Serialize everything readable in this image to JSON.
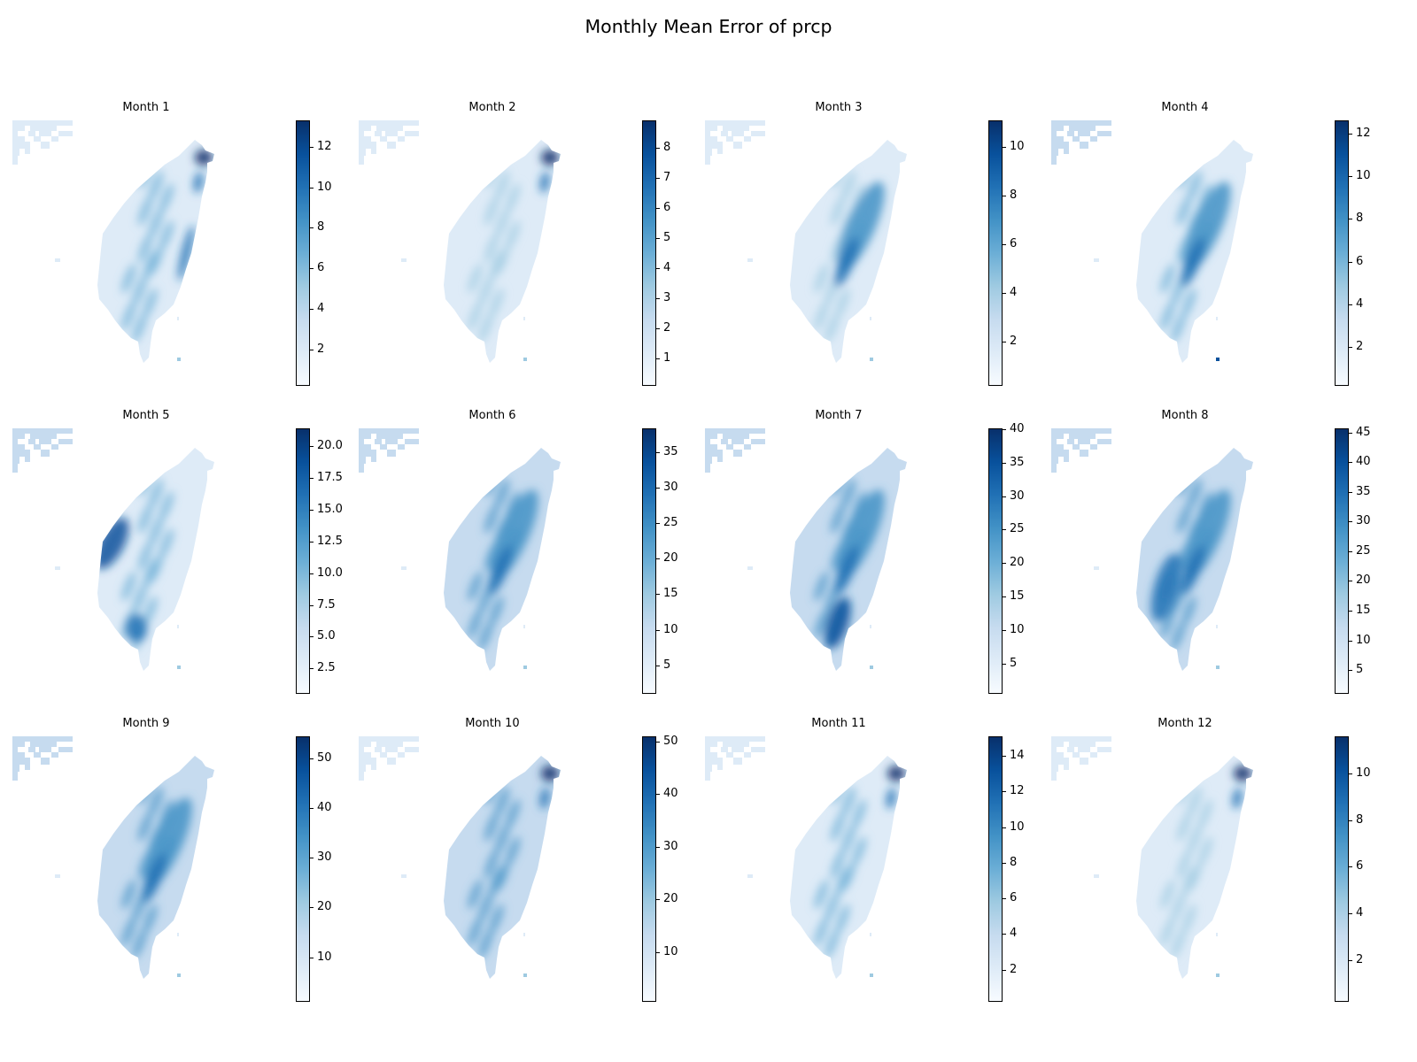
{
  "title": "Monthly Mean Error of prcp",
  "chart_data": {
    "type": "heatmap",
    "title": "Monthly Mean Error of prcp",
    "colormap": "Blues",
    "colors": [
      "#f7fbff",
      "#deebf7",
      "#c6dbef",
      "#9ecae1",
      "#6baed6",
      "#4292c6",
      "#2171b5",
      "#08519c",
      "#08306b"
    ],
    "grid": false,
    "panels": [
      {
        "title": "Month 1",
        "cbar_range": [
          0.2,
          13.3
        ],
        "ticks": [
          {
            "v": 2,
            "l": "2"
          },
          {
            "v": 4,
            "l": "4"
          },
          {
            "v": 6,
            "l": "6"
          },
          {
            "v": 8,
            "l": "8"
          },
          {
            "v": 10,
            "l": "10"
          },
          {
            "v": 12,
            "l": "12"
          }
        ],
        "peak": 13.0,
        "hotspots": [
          "northeast-coast",
          "east-coast"
        ]
      },
      {
        "title": "Month 2",
        "cbar_range": [
          0.1,
          8.9
        ],
        "ticks": [
          {
            "v": 1,
            "l": "1"
          },
          {
            "v": 2,
            "l": "2"
          },
          {
            "v": 3,
            "l": "3"
          },
          {
            "v": 4,
            "l": "4"
          },
          {
            "v": 5,
            "l": "5"
          },
          {
            "v": 6,
            "l": "6"
          },
          {
            "v": 7,
            "l": "7"
          },
          {
            "v": 8,
            "l": "8"
          }
        ],
        "peak": 8.8,
        "hotspots": [
          "northeast-coast"
        ]
      },
      {
        "title": "Month 3",
        "cbar_range": [
          0.2,
          11.1
        ],
        "ticks": [
          {
            "v": 2,
            "l": "2"
          },
          {
            "v": 4,
            "l": "4"
          },
          {
            "v": 6,
            "l": "6"
          },
          {
            "v": 8,
            "l": "8"
          },
          {
            "v": 10,
            "l": "10"
          }
        ],
        "peak": 11.0,
        "hotspots": [
          "central-mountains"
        ]
      },
      {
        "title": "Month 4",
        "cbar_range": [
          0.2,
          12.6
        ],
        "ticks": [
          {
            "v": 2,
            "l": "2"
          },
          {
            "v": 4,
            "l": "4"
          },
          {
            "v": 6,
            "l": "6"
          },
          {
            "v": 8,
            "l": "8"
          },
          {
            "v": 10,
            "l": "10"
          },
          {
            "v": 12,
            "l": "12"
          }
        ],
        "peak": 12.5,
        "hotspots": [
          "central-mountains",
          "southeast-islet"
        ]
      },
      {
        "title": "Month 5",
        "cbar_range": [
          0.5,
          21.4
        ],
        "ticks": [
          {
            "v": 2.5,
            "l": "2.5"
          },
          {
            "v": 5,
            "l": "5.0"
          },
          {
            "v": 7.5,
            "l": "7.5"
          },
          {
            "v": 10,
            "l": "10.0"
          },
          {
            "v": 12.5,
            "l": "12.5"
          },
          {
            "v": 15,
            "l": "15.0"
          },
          {
            "v": 17.5,
            "l": "17.5"
          },
          {
            "v": 20,
            "l": "20.0"
          }
        ],
        "peak": 21.0,
        "hotspots": [
          "west-coast",
          "south-west"
        ]
      },
      {
        "title": "Month 6",
        "cbar_range": [
          1,
          38.3
        ],
        "ticks": [
          {
            "v": 5,
            "l": "5"
          },
          {
            "v": 10,
            "l": "10"
          },
          {
            "v": 15,
            "l": "15"
          },
          {
            "v": 20,
            "l": "20"
          },
          {
            "v": 25,
            "l": "25"
          },
          {
            "v": 30,
            "l": "30"
          },
          {
            "v": 35,
            "l": "35"
          }
        ],
        "peak": 38.0,
        "hotspots": [
          "central-mountains"
        ]
      },
      {
        "title": "Month 7",
        "cbar_range": [
          0.5,
          40.1
        ],
        "ticks": [
          {
            "v": 5,
            "l": "5"
          },
          {
            "v": 10,
            "l": "10"
          },
          {
            "v": 15,
            "l": "15"
          },
          {
            "v": 20,
            "l": "20"
          },
          {
            "v": 25,
            "l": "25"
          },
          {
            "v": 30,
            "l": "30"
          },
          {
            "v": 35,
            "l": "35"
          },
          {
            "v": 40,
            "l": "40"
          }
        ],
        "peak": 40.0,
        "hotspots": [
          "central-mountains",
          "southern-mountains"
        ]
      },
      {
        "title": "Month 8",
        "cbar_range": [
          1,
          45.7
        ],
        "ticks": [
          {
            "v": 5,
            "l": "5"
          },
          {
            "v": 10,
            "l": "10"
          },
          {
            "v": 15,
            "l": "15"
          },
          {
            "v": 20,
            "l": "20"
          },
          {
            "v": 25,
            "l": "25"
          },
          {
            "v": 30,
            "l": "30"
          },
          {
            "v": 35,
            "l": "35"
          },
          {
            "v": 40,
            "l": "40"
          },
          {
            "v": 45,
            "l": "45"
          }
        ],
        "peak": 45.5,
        "hotspots": [
          "central-mountains",
          "southwest"
        ]
      },
      {
        "title": "Month 9",
        "cbar_range": [
          1,
          54.5
        ],
        "ticks": [
          {
            "v": 10,
            "l": "10"
          },
          {
            "v": 20,
            "l": "20"
          },
          {
            "v": 30,
            "l": "30"
          },
          {
            "v": 40,
            "l": "40"
          },
          {
            "v": 50,
            "l": "50"
          }
        ],
        "peak": 54.0,
        "hotspots": [
          "central-mountains"
        ]
      },
      {
        "title": "Month 10",
        "cbar_range": [
          0.5,
          51
        ],
        "ticks": [
          {
            "v": 10,
            "l": "10"
          },
          {
            "v": 20,
            "l": "20"
          },
          {
            "v": 30,
            "l": "30"
          },
          {
            "v": 40,
            "l": "40"
          },
          {
            "v": 50,
            "l": "50"
          }
        ],
        "peak": 50.5,
        "hotspots": [
          "northeast-coast"
        ]
      },
      {
        "title": "Month 11",
        "cbar_range": [
          0.2,
          15.1
        ],
        "ticks": [
          {
            "v": 2,
            "l": "2"
          },
          {
            "v": 4,
            "l": "4"
          },
          {
            "v": 6,
            "l": "6"
          },
          {
            "v": 8,
            "l": "8"
          },
          {
            "v": 10,
            "l": "10"
          },
          {
            "v": 12,
            "l": "12"
          },
          {
            "v": 14,
            "l": "14"
          }
        ],
        "peak": 15.0,
        "hotspots": [
          "northeast-coast"
        ]
      },
      {
        "title": "Month 12",
        "cbar_range": [
          0.2,
          11.6
        ],
        "ticks": [
          {
            "v": 2,
            "l": "2"
          },
          {
            "v": 4,
            "l": "4"
          },
          {
            "v": 6,
            "l": "6"
          },
          {
            "v": 8,
            "l": "8"
          },
          {
            "v": 10,
            "l": "10"
          }
        ],
        "peak": 11.4,
        "hotspots": [
          "northeast-coast"
        ]
      }
    ]
  }
}
